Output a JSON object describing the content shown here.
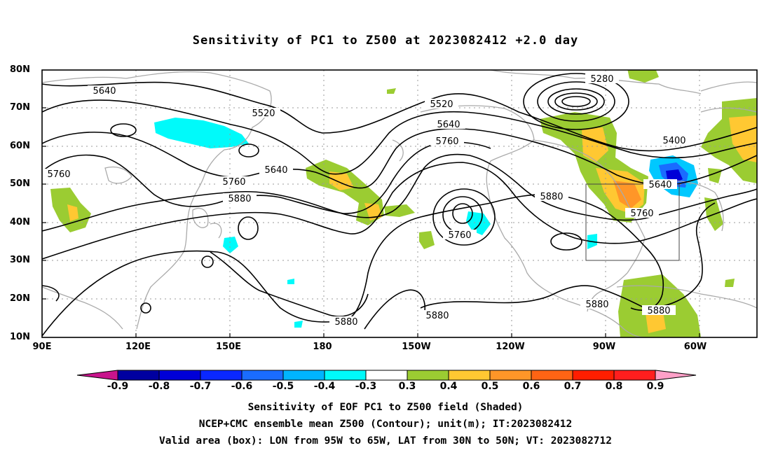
{
  "title": "Sensitivity of PC1 to Z500 at 2023082412 +2.0 day",
  "lat_labels": [
    "80N",
    "70N",
    "60N",
    "50N",
    "40N",
    "30N",
    "20N",
    "10N"
  ],
  "lon_labels": [
    "90E",
    "120E",
    "150E",
    "180",
    "150W",
    "120W",
    "90W",
    "60W"
  ],
  "contour_labels": [
    "5640",
    "5520",
    "5520",
    "5280",
    "5640",
    "5400",
    "5760",
    "5640",
    "5760",
    "5760",
    "5640",
    "5880",
    "5880",
    "5760",
    "5760",
    "5880",
    "5880",
    "5880",
    "5880",
    "5880"
  ],
  "colorbar": {
    "labels": [
      "-0.9",
      "-0.8",
      "-0.7",
      "-0.6",
      "-0.5",
      "-0.4",
      "-0.3",
      "0.3",
      "0.4",
      "0.5",
      "0.6",
      "0.7",
      "0.8",
      "0.9"
    ],
    "colors": [
      "#0000a0",
      "#0000d8",
      "#0a28ff",
      "#1a6cff",
      "#00b4ff",
      "#00fafa",
      "#ffffff",
      "#9bcc32",
      "#ffc832",
      "#ff9628",
      "#ff6414",
      "#ff1e00",
      "#ff1e1e"
    ],
    "low_end_color": "#c8148c",
    "high_end_color": "#ffa0c8"
  },
  "captions": [
    "Sensitivity of EOF PC1 to Z500 field (Shaded)",
    "NCEP+CMC ensemble mean Z500 (Contour); unit(m); IT:2023082412",
    "Valid area (box): LON from 95W to 65W, LAT from 30N to 50N; VT: 2023082712"
  ]
}
